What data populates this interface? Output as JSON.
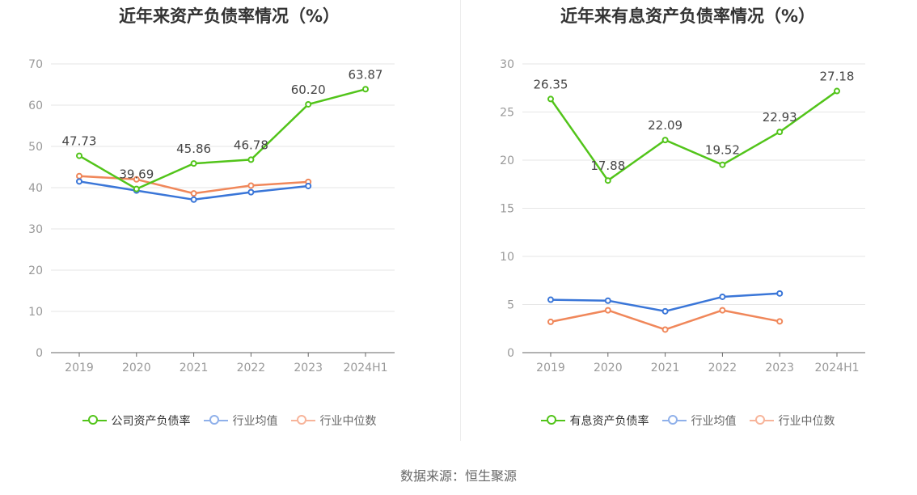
{
  "chart_data": [
    {
      "type": "line",
      "title": "近年来资产负债率情况（%）",
      "categories": [
        "2019",
        "2020",
        "2021",
        "2022",
        "2023",
        "2024H1"
      ],
      "ylim": [
        0,
        70
      ],
      "yticks": [
        0,
        10,
        20,
        30,
        40,
        50,
        60,
        70
      ],
      "grid": true,
      "legend_position": "bottom",
      "series": [
        {
          "name": "公司资产负债率",
          "color": "#52c41a",
          "values": [
            47.73,
            39.69,
            45.86,
            46.78,
            60.2,
            63.87
          ],
          "labels": [
            "47.73",
            "39.69",
            "45.86",
            "46.78",
            "60.20",
            "63.87"
          ]
        },
        {
          "name": "行业均值",
          "color": "#3a76d8",
          "values": [
            41.5,
            39.3,
            37.1,
            38.9,
            40.4,
            null
          ]
        },
        {
          "name": "行业中位数",
          "color": "#f0875a",
          "values": [
            42.8,
            42.0,
            38.6,
            40.5,
            41.4,
            null
          ]
        }
      ]
    },
    {
      "type": "line",
      "title": "近年来有息资产负债率情况（%）",
      "categories": [
        "2019",
        "2020",
        "2021",
        "2022",
        "2023",
        "2024H1"
      ],
      "ylim": [
        0,
        30
      ],
      "yticks": [
        0,
        5,
        10,
        15,
        20,
        25,
        30
      ],
      "grid": true,
      "legend_position": "bottom",
      "series": [
        {
          "name": "有息资产负债率",
          "color": "#52c41a",
          "values": [
            26.35,
            17.88,
            22.09,
            19.52,
            22.93,
            27.18
          ],
          "labels": [
            "26.35",
            "17.88",
            "22.09",
            "19.52",
            "22.93",
            "27.18"
          ]
        },
        {
          "name": "行业均值",
          "color": "#3a76d8",
          "values": [
            5.5,
            5.4,
            4.3,
            5.8,
            6.15,
            null
          ]
        },
        {
          "name": "行业中位数",
          "color": "#f0875a",
          "values": [
            3.2,
            4.4,
            2.4,
            4.4,
            3.25,
            null
          ]
        }
      ]
    }
  ],
  "footer": {
    "source": "数据来源：恒生聚源"
  },
  "colors": {
    "axis_text": "#999999",
    "grid": "#e6e6e6",
    "axis_line": "#666666"
  }
}
